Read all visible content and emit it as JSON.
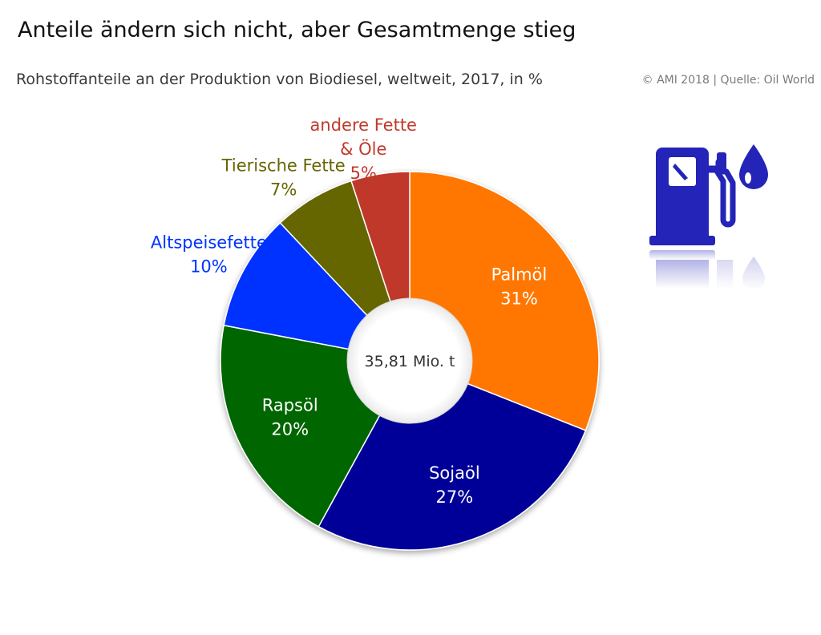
{
  "header": {
    "title": "Anteile ändern sich nicht, aber Gesamtmenge stieg",
    "subtitle": "Rohstoffanteile an der Produktion von Biodiesel, weltweit, 2017, in %",
    "credit": "© AMI 2018 | Quelle: Oil World"
  },
  "chart_data": {
    "type": "pie",
    "donut": true,
    "center_label": "35,81 Mio. t",
    "unit": "%",
    "slices": [
      {
        "label": "Palmöl",
        "value": 31,
        "value_label": "31%",
        "color": "#ff7700",
        "label_color": "#ffffff",
        "label_placement": "inside"
      },
      {
        "label": "Sojaöl",
        "value": 27,
        "value_label": "27%",
        "color": "#000099",
        "label_color": "#ffffff",
        "label_placement": "inside"
      },
      {
        "label": "Rapsöl",
        "value": 20,
        "value_label": "20%",
        "color": "#006600",
        "label_color": "#ffffff",
        "label_placement": "inside"
      },
      {
        "label": "Altspeisefette",
        "value": 10,
        "value_label": "10%",
        "color": "#0033ff",
        "label_color": "#0033ff",
        "label_placement": "outside"
      },
      {
        "label": "Tierische Fette",
        "value": 7,
        "value_label": "7%",
        "color": "#666600",
        "label_color": "#666600",
        "label_placement": "outside"
      },
      {
        "label": "andere Fette\n& Öle",
        "value": 5,
        "value_label": "5%",
        "color": "#c0392b",
        "label_color": "#c0392b",
        "label_placement": "outside"
      }
    ]
  },
  "decor": {
    "icons": [
      "fuel-pump-icon",
      "oil-drop-icon"
    ],
    "icon_color": "#2424b8"
  }
}
